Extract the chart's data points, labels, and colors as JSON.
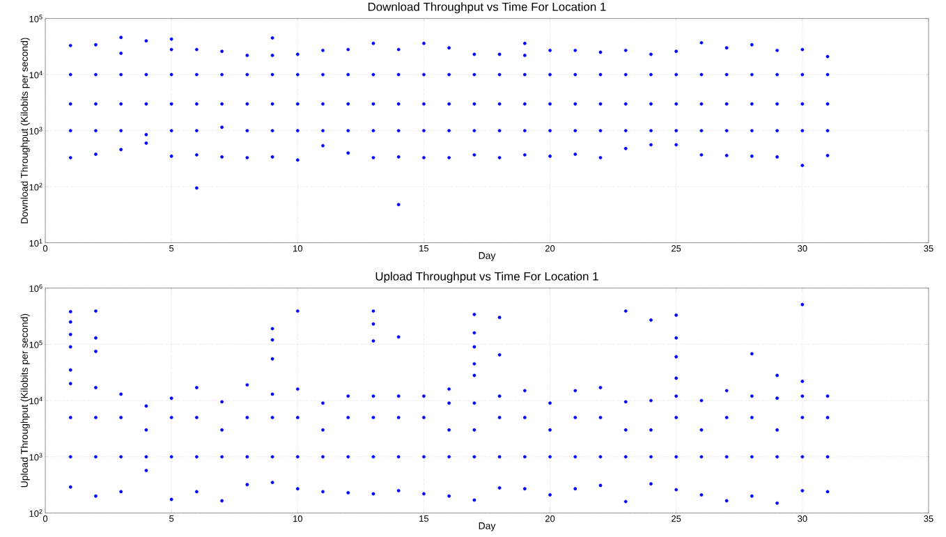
{
  "chart_data": [
    {
      "type": "scatter",
      "title": "Download Throughput vs Time For Location 1",
      "xlabel": "Day",
      "ylabel": "Download Throughput (Kilobits per second)",
      "color": "#0000ff",
      "log": "y",
      "grid": true,
      "xlim": [
        0,
        35
      ],
      "xticks": [
        0,
        5,
        10,
        15,
        20,
        25,
        30,
        35
      ],
      "ylim": [
        10,
        100000
      ],
      "yticks": [
        {
          "value": 10,
          "label": "10$^{1}$"
        },
        {
          "value": 100,
          "label": "10$^{2}$"
        },
        {
          "value": 1000,
          "label": "10$^{3}$"
        },
        {
          "value": 10000,
          "label": "10$^{4}$"
        },
        {
          "value": 100000,
          "label": "10$^{5}$"
        }
      ],
      "x": [
        1,
        1,
        1,
        1,
        1,
        2,
        2,
        2,
        2,
        2,
        3,
        3,
        3,
        3,
        3,
        3,
        4,
        4,
        4,
        4,
        4,
        5,
        5,
        5,
        5,
        5,
        5,
        6,
        6,
        6,
        6,
        6,
        6,
        7,
        7,
        7,
        7,
        7,
        8,
        8,
        8,
        8,
        8,
        9,
        9,
        9,
        9,
        9,
        9,
        10,
        10,
        10,
        10,
        10,
        11,
        11,
        11,
        11,
        11,
        12,
        12,
        12,
        12,
        12,
        13,
        13,
        13,
        13,
        13,
        14,
        14,
        14,
        14,
        14,
        14,
        15,
        15,
        15,
        15,
        15,
        16,
        16,
        16,
        16,
        16,
        17,
        17,
        17,
        17,
        17,
        18,
        18,
        18,
        18,
        18,
        19,
        19,
        19,
        19,
        19,
        19,
        20,
        20,
        20,
        20,
        20,
        21,
        21,
        21,
        21,
        21,
        22,
        22,
        22,
        22,
        22,
        23,
        23,
        23,
        23,
        23,
        24,
        24,
        24,
        24,
        24,
        25,
        25,
        25,
        25,
        25,
        26,
        26,
        26,
        26,
        26,
        27,
        27,
        27,
        27,
        27,
        28,
        28,
        28,
        28,
        28,
        29,
        29,
        29,
        29,
        29,
        30,
        30,
        30,
        30,
        30,
        31,
        31,
        31,
        31,
        31
      ],
      "values": [
        33000,
        10000,
        3000,
        1000,
        330,
        34000,
        10000,
        3000,
        1000,
        380,
        46000,
        24000,
        10000,
        3000,
        1000,
        460,
        40000,
        10000,
        3000,
        850,
        600,
        43000,
        28000,
        10000,
        3000,
        1000,
        350,
        28000,
        10000,
        3000,
        1000,
        370,
        95,
        26000,
        10000,
        3000,
        1150,
        340,
        22000,
        10000,
        3000,
        1000,
        330,
        45000,
        22000,
        10000,
        3000,
        1000,
        340,
        23000,
        10000,
        3000,
        1000,
        300,
        27000,
        10000,
        3000,
        1000,
        540,
        28000,
        10000,
        3000,
        1000,
        400,
        36000,
        10000,
        3000,
        1000,
        330,
        28000,
        10000,
        3000,
        1000,
        340,
        48,
        36000,
        10000,
        3000,
        1000,
        330,
        30000,
        10000,
        3000,
        1000,
        330,
        23000,
        10000,
        3000,
        1000,
        370,
        23000,
        10000,
        3000,
        1000,
        330,
        36000,
        22000,
        10000,
        3000,
        1000,
        370,
        27000,
        10000,
        3000,
        1000,
        350,
        27000,
        10000,
        3000,
        1000,
        380,
        25000,
        10000,
        3000,
        1000,
        330,
        27000,
        10000,
        3000,
        1000,
        480,
        23000,
        10000,
        3000,
        1000,
        560,
        26000,
        10000,
        3000,
        1000,
        560,
        37000,
        10000,
        3000,
        1000,
        370,
        30000,
        10000,
        3000,
        1000,
        360,
        34000,
        10000,
        3000,
        1000,
        350,
        27000,
        10000,
        3000,
        1000,
        340,
        28000,
        10000,
        3000,
        1000,
        240,
        21000,
        10000,
        3000,
        1000,
        360
      ]
    },
    {
      "type": "scatter",
      "title": "Upload Throughput vs Time For Location 1",
      "xlabel": "Day",
      "ylabel": "Upload Throughput (Kilobits per second)",
      "color": "#0000ff",
      "log": "y",
      "grid": true,
      "xlim": [
        0,
        35
      ],
      "xticks": [
        0,
        5,
        10,
        15,
        20,
        25,
        30,
        35
      ],
      "ylim": [
        100,
        1000000
      ],
      "yticks": [
        {
          "value": 100,
          "label": "10$^{2}$"
        },
        {
          "value": 1000,
          "label": "10$^{3}$"
        },
        {
          "value": 10000,
          "label": "10$^{4}$"
        },
        {
          "value": 100000,
          "label": "10$^{5}$"
        },
        {
          "value": 1000000,
          "label": "10$^{6}$"
        }
      ],
      "x": [
        1,
        1,
        1,
        1,
        1,
        1,
        1,
        1,
        1,
        2,
        2,
        2,
        2,
        2,
        2,
        2,
        3,
        3,
        3,
        3,
        4,
        4,
        4,
        4,
        5,
        5,
        5,
        5,
        6,
        6,
        6,
        6,
        7,
        7,
        7,
        7,
        8,
        8,
        8,
        8,
        9,
        9,
        9,
        9,
        9,
        9,
        9,
        10,
        10,
        10,
        10,
        10,
        11,
        11,
        11,
        11,
        12,
        12,
        12,
        12,
        13,
        13,
        13,
        13,
        13,
        13,
        13,
        14,
        14,
        14,
        14,
        14,
        15,
        15,
        15,
        15,
        16,
        16,
        16,
        16,
        16,
        17,
        17,
        17,
        17,
        17,
        17,
        17,
        17,
        17,
        18,
        18,
        18,
        18,
        18,
        18,
        19,
        19,
        19,
        19,
        20,
        20,
        20,
        20,
        21,
        21,
        21,
        21,
        22,
        22,
        22,
        22,
        23,
        23,
        23,
        23,
        23,
        24,
        24,
        24,
        24,
        24,
        25,
        25,
        25,
        25,
        25,
        25,
        25,
        25,
        26,
        26,
        26,
        26,
        27,
        27,
        27,
        27,
        28,
        28,
        28,
        28,
        28,
        29,
        29,
        29,
        29,
        29,
        30,
        30,
        30,
        30,
        30,
        30,
        31,
        31,
        31,
        31
      ],
      "values": [
        380000,
        250000,
        150000,
        90000,
        35000,
        20000,
        5000,
        1000,
        290,
        390000,
        130000,
        75000,
        17000,
        5000,
        1000,
        200,
        13000,
        5000,
        1000,
        240,
        8000,
        3000,
        1000,
        570,
        11000,
        5000,
        1000,
        175,
        17000,
        5000,
        1000,
        240,
        9500,
        3000,
        1000,
        165,
        19000,
        5000,
        1000,
        320,
        190000,
        120000,
        55000,
        13000,
        5000,
        1000,
        350,
        390000,
        16000,
        5000,
        1000,
        270,
        9000,
        3000,
        1000,
        240,
        12000,
        5000,
        1000,
        230,
        390000,
        230000,
        115000,
        12000,
        5000,
        1000,
        220,
        135000,
        12000,
        5000,
        1000,
        250,
        12000,
        5000,
        1000,
        220,
        16000,
        9000,
        3000,
        1000,
        200,
        340000,
        160000,
        90000,
        45000,
        28000,
        9000,
        3000,
        1000,
        170,
        300000,
        65000,
        12000,
        5000,
        1000,
        280,
        15000,
        5000,
        1000,
        270,
        9000,
        3000,
        1000,
        210,
        15000,
        5000,
        1000,
        270,
        17000,
        5000,
        1000,
        310,
        390000,
        9500,
        3000,
        1000,
        160,
        270000,
        10000,
        3000,
        1000,
        330,
        330000,
        130000,
        60000,
        25000,
        12000,
        5000,
        1000,
        260,
        10000,
        3000,
        1000,
        210,
        15000,
        5000,
        1000,
        165,
        68000,
        12000,
        5000,
        1000,
        200,
        28000,
        11000,
        3000,
        1000,
        150,
        510000,
        22000,
        12000,
        5000,
        1000,
        250,
        12000,
        5000,
        1000,
        240
      ]
    }
  ]
}
